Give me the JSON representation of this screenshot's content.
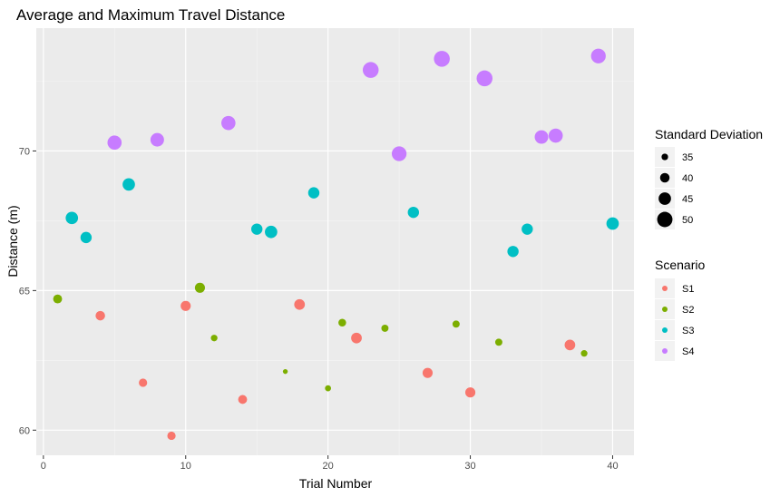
{
  "chart_data": {
    "type": "scatter",
    "title": "Average and Maximum Travel Distance",
    "xlabel": "Trial Number",
    "ylabel": "Distance (m)",
    "xlim": [
      -0.5,
      41.5
    ],
    "ylim": [
      59.1,
      74.4
    ],
    "x_ticks": [
      0,
      10,
      20,
      30,
      40
    ],
    "y_ticks": [
      60,
      65,
      70
    ],
    "grid": true,
    "legend_position": "right",
    "color_legend": {
      "title": "Scenario",
      "entries": [
        {
          "name": "S1",
          "color": "#F8766D"
        },
        {
          "name": "S2",
          "color": "#7CAE00"
        },
        {
          "name": "S3",
          "color": "#00BFC4"
        },
        {
          "name": "S4",
          "color": "#C77CFF"
        }
      ]
    },
    "size_legend": {
      "title": "Standard Deviation",
      "values": [
        35,
        40,
        45,
        50
      ]
    },
    "series": [
      {
        "name": "S1",
        "points": [
          {
            "x": 4,
            "y": 64.1,
            "sd": 40
          },
          {
            "x": 7,
            "y": 61.7,
            "sd": 38
          },
          {
            "x": 9,
            "y": 59.8,
            "sd": 38
          },
          {
            "x": 10,
            "y": 64.45,
            "sd": 41
          },
          {
            "x": 14,
            "y": 61.1,
            "sd": 39
          },
          {
            "x": 18,
            "y": 64.5,
            "sd": 42
          },
          {
            "x": 22,
            "y": 63.3,
            "sd": 42
          },
          {
            "x": 27,
            "y": 62.05,
            "sd": 41
          },
          {
            "x": 30,
            "y": 61.35,
            "sd": 41
          },
          {
            "x": 37,
            "y": 63.05,
            "sd": 42
          }
        ]
      },
      {
        "name": "S2",
        "points": [
          {
            "x": 1,
            "y": 64.7,
            "sd": 39
          },
          {
            "x": 11,
            "y": 65.1,
            "sd": 41
          },
          {
            "x": 12,
            "y": 63.3,
            "sd": 35
          },
          {
            "x": 17,
            "y": 62.1,
            "sd": 32
          },
          {
            "x": 20,
            "y": 61.5,
            "sd": 34
          },
          {
            "x": 21,
            "y": 63.85,
            "sd": 37
          },
          {
            "x": 24,
            "y": 63.65,
            "sd": 36
          },
          {
            "x": 29,
            "y": 63.8,
            "sd": 36
          },
          {
            "x": 32,
            "y": 63.15,
            "sd": 36
          },
          {
            "x": 38,
            "y": 62.75,
            "sd": 35
          }
        ]
      },
      {
        "name": "S3",
        "points": [
          {
            "x": 2,
            "y": 67.6,
            "sd": 45
          },
          {
            "x": 3,
            "y": 66.9,
            "sd": 43
          },
          {
            "x": 6,
            "y": 68.8,
            "sd": 45
          },
          {
            "x": 15,
            "y": 67.2,
            "sd": 43
          },
          {
            "x": 16,
            "y": 67.1,
            "sd": 45
          },
          {
            "x": 19,
            "y": 68.5,
            "sd": 43
          },
          {
            "x": 26,
            "y": 67.8,
            "sd": 43
          },
          {
            "x": 33,
            "y": 66.4,
            "sd": 43
          },
          {
            "x": 34,
            "y": 67.2,
            "sd": 43
          },
          {
            "x": 40,
            "y": 67.4,
            "sd": 45
          }
        ]
      },
      {
        "name": "S4",
        "points": [
          {
            "x": 5,
            "y": 70.3,
            "sd": 48
          },
          {
            "x": 8,
            "y": 70.4,
            "sd": 47
          },
          {
            "x": 13,
            "y": 71.0,
            "sd": 48
          },
          {
            "x": 23,
            "y": 72.9,
            "sd": 51
          },
          {
            "x": 25,
            "y": 69.9,
            "sd": 49
          },
          {
            "x": 28,
            "y": 73.3,
            "sd": 51
          },
          {
            "x": 31,
            "y": 72.6,
            "sd": 51
          },
          {
            "x": 35,
            "y": 70.5,
            "sd": 47
          },
          {
            "x": 36,
            "y": 70.55,
            "sd": 48
          },
          {
            "x": 39,
            "y": 73.4,
            "sd": 49
          }
        ]
      }
    ]
  }
}
